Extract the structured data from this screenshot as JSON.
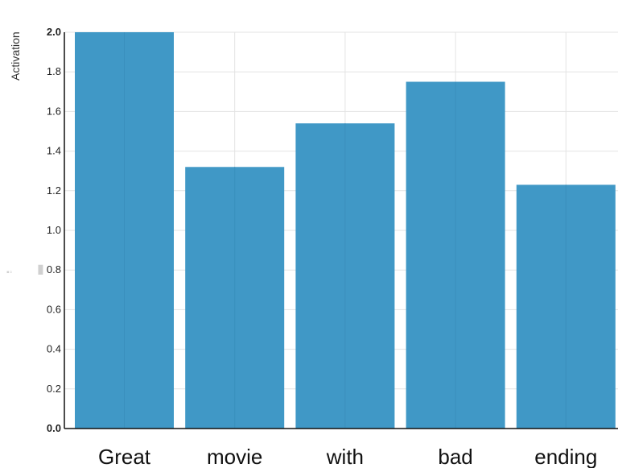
{
  "chart_data": {
    "type": "bar",
    "categories": [
      "Great",
      "movie",
      "with",
      "bad",
      "ending"
    ],
    "values": [
      2.0,
      1.32,
      1.54,
      1.75,
      1.23
    ],
    "ylabel": "Activation",
    "xlabel": "",
    "ylim": [
      0,
      2.0
    ],
    "yticks": [
      "0.0",
      "0.2",
      "0.4",
      "0.6",
      "0.8",
      "1.0",
      "1.2",
      "1.4",
      "1.6",
      "1.8",
      "2.0"
    ],
    "grid": true,
    "bar_color": "#4098c6",
    "bar_edge_color": "#3a8fbd"
  }
}
